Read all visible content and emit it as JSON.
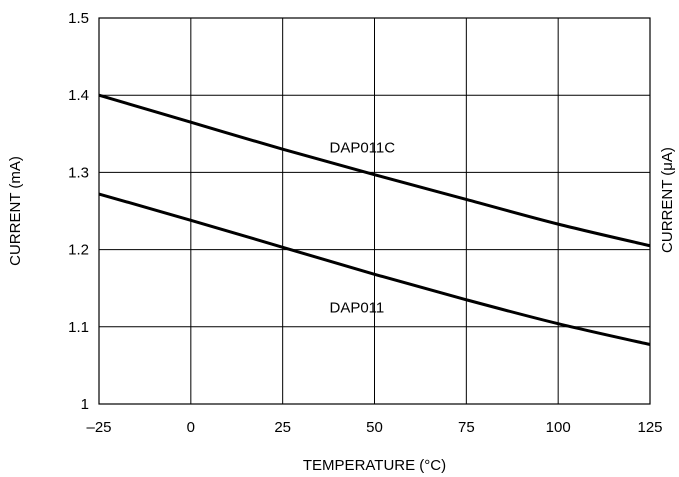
{
  "chart_data": {
    "type": "line",
    "xlabel": "TEMPERATURE (°C)",
    "ylabel": "CURRENT (mA)",
    "right_axis_label_partial": "CURRENT (μA)",
    "xlim": [
      -25,
      125
    ],
    "ylim": [
      1.0,
      1.5
    ],
    "x_ticks": [
      -25,
      0,
      25,
      50,
      75,
      100,
      125
    ],
    "x_tick_labels": [
      "–25",
      "0",
      "25",
      "50",
      "75",
      "100",
      "125"
    ],
    "y_ticks": [
      1.0,
      1.1,
      1.2,
      1.3,
      1.4,
      1.5
    ],
    "y_tick_labels": [
      "1",
      "1.1",
      "1.2",
      "1.3",
      "1.4",
      "1.5"
    ],
    "grid": true,
    "series": [
      {
        "name": "DAP011C",
        "x": [
          -25,
          0,
          25,
          50,
          75,
          100,
          125
        ],
        "values": [
          1.4,
          1.365,
          1.33,
          1.297,
          1.265,
          1.233,
          1.205
        ]
      },
      {
        "name": "DAP011",
        "x": [
          -25,
          0,
          25,
          50,
          75,
          100,
          125
        ],
        "values": [
          1.272,
          1.238,
          1.203,
          1.168,
          1.135,
          1.104,
          1.077
        ]
      }
    ]
  }
}
